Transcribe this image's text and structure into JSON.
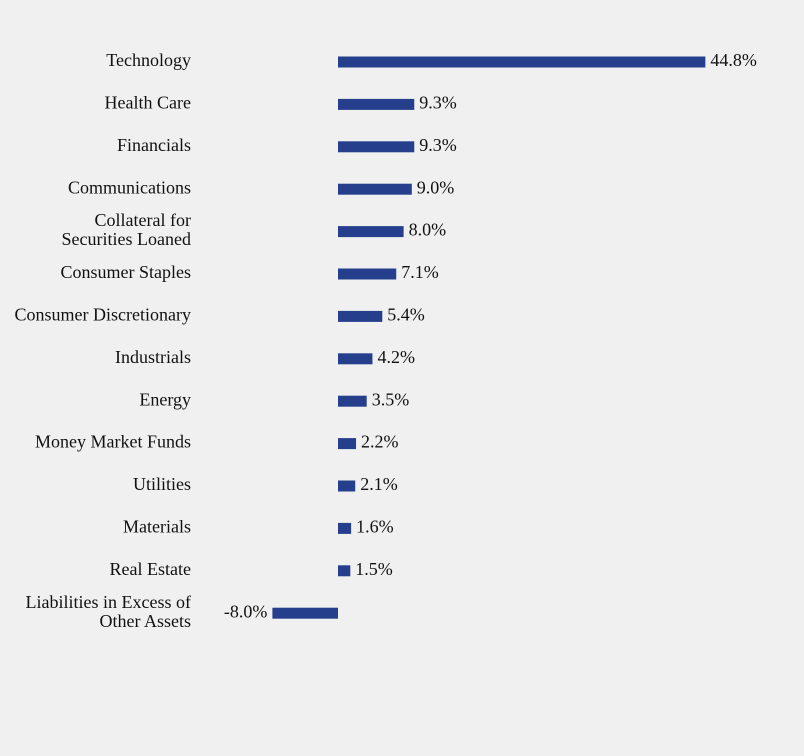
{
  "chart_data": {
    "type": "bar",
    "orientation": "horizontal",
    "categories": [
      "Technology",
      "Health Care",
      "Financials",
      "Communications",
      "Collateral for Securities Loaned",
      "Consumer Staples",
      "Consumer Discretionary",
      "Industrials",
      "Energy",
      "Money Market Funds",
      "Utilities",
      "Materials",
      "Real Estate",
      "Liabilities in Excess of Other Assets"
    ],
    "values": [
      44.8,
      9.3,
      9.3,
      9.0,
      8.0,
      7.1,
      5.4,
      4.2,
      3.5,
      2.2,
      2.1,
      1.6,
      1.5,
      -8.0
    ],
    "labels": [
      "44.8%",
      "9.3%",
      "9.3%",
      "9.0%",
      "8.0%",
      "7.1%",
      "5.4%",
      "4.2%",
      "3.5%",
      "2.2%",
      "2.1%",
      "1.6%",
      "1.5%",
      "-8.0%"
    ],
    "bar_color": "#263f8c",
    "background": "#f0f0f0",
    "grid": false,
    "legend": "none"
  }
}
